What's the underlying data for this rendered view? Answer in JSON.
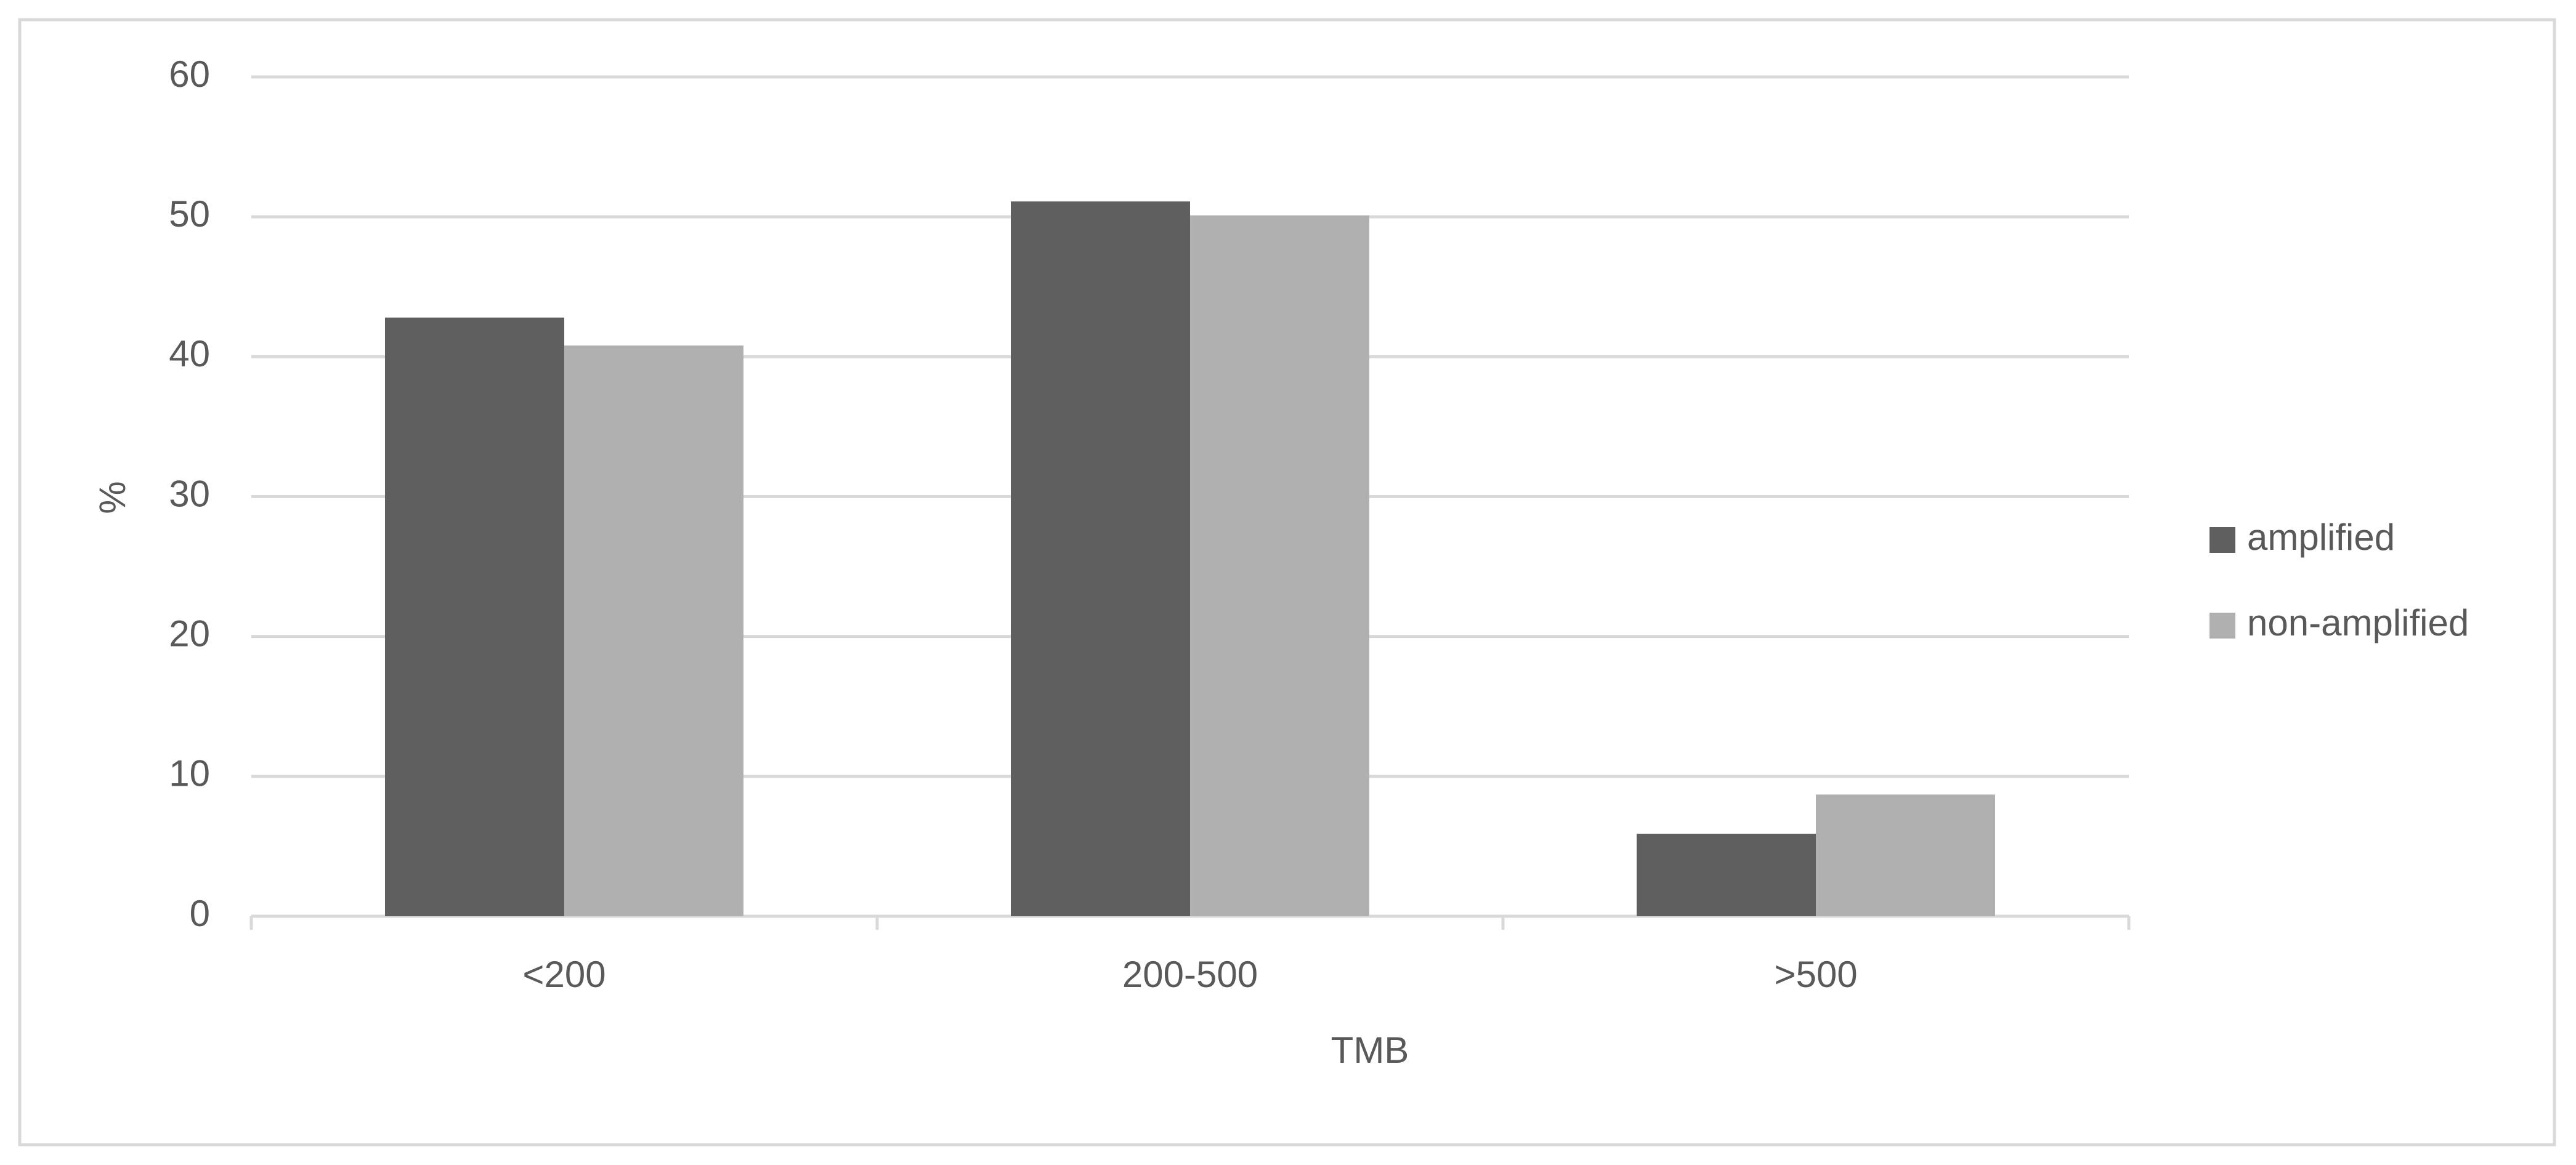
{
  "chart_data": {
    "type": "bar",
    "x_label": "TMB",
    "y_label": "%",
    "categories": [
      "<200",
      "200-500",
      ">500"
    ],
    "series": [
      {
        "name": "amplified",
        "color": "#5f5f5f",
        "values": [
          42.8,
          51.1,
          5.9
        ]
      },
      {
        "name": "non-amplified",
        "color": "#b0b0b0",
        "values": [
          40.8,
          50.1,
          8.7
        ]
      }
    ],
    "ylim": [
      0,
      60
    ],
    "yticks": [
      0,
      10,
      20,
      30,
      40,
      50,
      60
    ],
    "grid": true,
    "legend": "right"
  }
}
